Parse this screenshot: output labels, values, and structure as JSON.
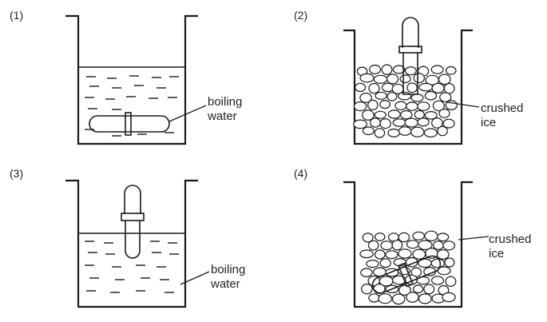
{
  "panels": [
    {
      "number": "(1)",
      "label_line1": "boiling",
      "label_line2": "water"
    },
    {
      "number": "(2)",
      "label_line1": "crushed",
      "label_line2": "ice"
    },
    {
      "number": "(3)",
      "label_line1": "boiling",
      "label_line2": "water"
    },
    {
      "number": "(4)",
      "label_line1": "crushed",
      "label_line2": "ice"
    }
  ],
  "colors": {
    "ink": "#1a1a1a",
    "paper": "#ffffff"
  }
}
